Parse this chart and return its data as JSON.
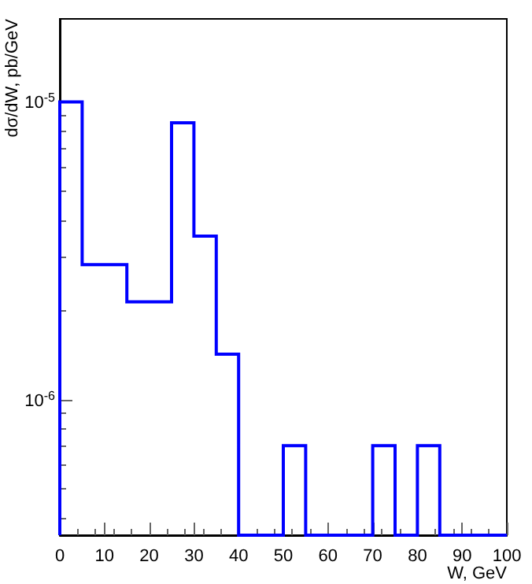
{
  "chart_data": {
    "type": "histogram",
    "xlabel": "W, GeV",
    "ylabel": "dσ/dW, pb/GeV",
    "bins": [
      0,
      5,
      10,
      15,
      20,
      25,
      30,
      35,
      40,
      45,
      50,
      55,
      60,
      65,
      70,
      75,
      80,
      85,
      90,
      95,
      100
    ],
    "values": [
      1e-05,
      2.84e-06,
      2.84e-06,
      2.13e-06,
      2.13e-06,
      8.5e-06,
      3.54e-06,
      1.42e-06,
      null,
      null,
      7e-07,
      null,
      null,
      null,
      7e-07,
      null,
      7e-07,
      null,
      null,
      null
    ],
    "color": "#0000ff",
    "log": "y",
    "xlim": [
      0,
      100
    ],
    "xticks": [
      0,
      10,
      20,
      30,
      40,
      50,
      60,
      70,
      80,
      90,
      100
    ],
    "ylim": [
      3.5e-07,
      1.9e-05
    ],
    "yticks": [
      {
        "value": 1e-06,
        "label": "10$^{-6}$"
      },
      {
        "value": 1e-05,
        "label": "10$^{-5}$"
      }
    ]
  }
}
